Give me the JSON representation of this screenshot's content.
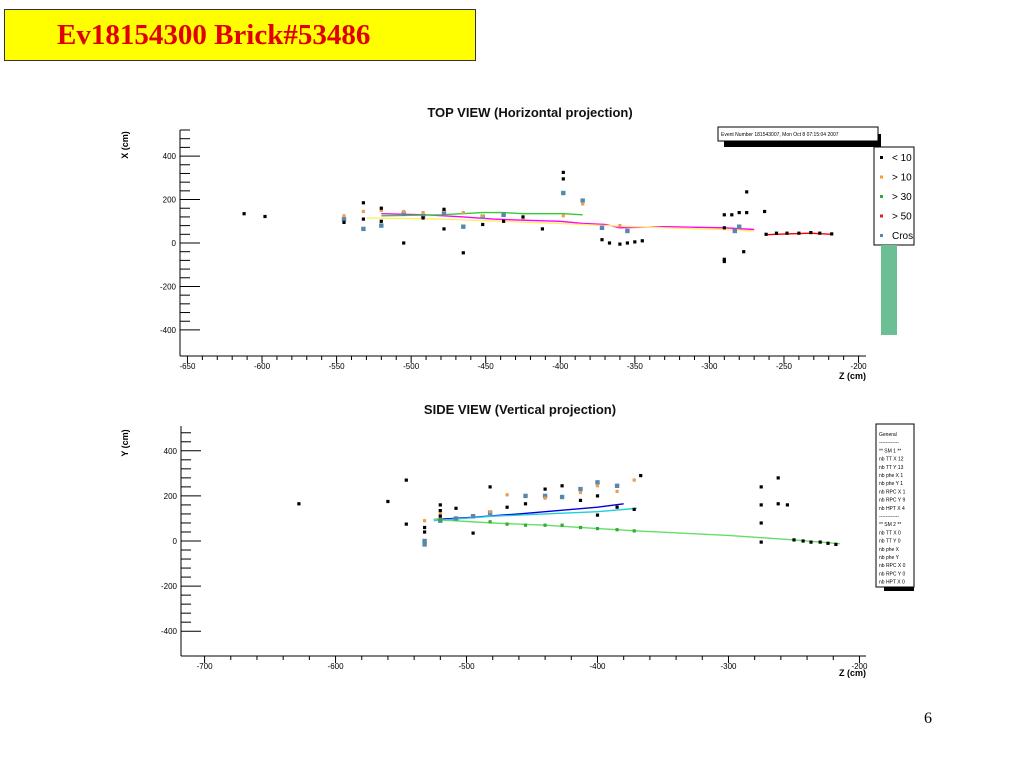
{
  "slide": {
    "title": "Ev18154300 Brick#53486",
    "page_number": "6"
  },
  "colors": {
    "title_bg": "#ffff00",
    "title_text": "#e00000",
    "track_magenta": "#ff00ff",
    "track_green": "#33cc33",
    "track_red": "#ff0000",
    "track_yellow": "#ffee66",
    "track_blue": "#0000dd",
    "track_cyan": "#22ccdd",
    "track_lightgreen": "#66dd66",
    "cross_marker": "#5588aa",
    "legend_bar": "#6cbf94"
  },
  "info_box": {
    "text": "Event Number 181543007, Mon Oct  8 07:15:04 2007"
  },
  "legend_top": {
    "entries": [
      {
        "label": "< 10",
        "color": "#000000"
      },
      {
        "label": "> 10",
        "color": "#ff9933"
      },
      {
        "label": "> 30",
        "color": "#33aa33"
      },
      {
        "label": "> 50",
        "color": "#dd2222"
      },
      {
        "label": "Cros",
        "color": "#5588aa"
      }
    ]
  },
  "stats_box": {
    "lines": [
      "General",
      "------------",
      "** SM 1 **",
      "nb TT X 12",
      "nb TT Y 13",
      "nb phe X 1",
      "nb phe Y 1",
      "nb RPC X 1",
      "nb RPC Y 9",
      "nb HPT X 4",
      "------------",
      "** SM 2 **",
      "nb TT X 0",
      "nb TT Y 0",
      "nb phe X",
      "nb phe Y",
      "nb RPC X 0",
      "nb RPC Y 0",
      "nb HPT X 0"
    ]
  },
  "chart_data": [
    {
      "type": "scatter",
      "title": "TOP VIEW (Horizontal projection)",
      "xlabel": "Z (cm)",
      "ylabel": "X (cm)",
      "xlim": [
        -655,
        -195
      ],
      "ylim": [
        -520,
        520
      ],
      "xticks": [
        -650,
        -600,
        -550,
        -500,
        -450,
        -400,
        -350,
        -300,
        -250,
        -200
      ],
      "yticks": [
        -400,
        -200,
        0,
        200,
        400
      ],
      "points_black": [
        [
          -612,
          135
        ],
        [
          -598,
          122
        ],
        [
          -545,
          95
        ],
        [
          -532,
          110
        ],
        [
          -532,
          185
        ],
        [
          -520,
          100
        ],
        [
          -520,
          160
        ],
        [
          -505,
          0
        ],
        [
          -492,
          115
        ],
        [
          -478,
          65
        ],
        [
          -478,
          155
        ],
        [
          -465,
          -45
        ],
        [
          -452,
          85
        ],
        [
          -438,
          100
        ],
        [
          -425,
          120
        ],
        [
          -412,
          65
        ],
        [
          -398,
          325
        ],
        [
          -398,
          295
        ],
        [
          -372,
          15
        ],
        [
          -367,
          0
        ],
        [
          -360,
          -5
        ],
        [
          -355,
          0
        ],
        [
          -350,
          5
        ],
        [
          -345,
          10
        ],
        [
          -290,
          130
        ],
        [
          -290,
          70
        ],
        [
          -290,
          -75
        ],
        [
          -290,
          -85
        ],
        [
          -285,
          130
        ],
        [
          -280,
          140
        ],
        [
          -277,
          -40
        ],
        [
          -275,
          140
        ],
        [
          -275,
          235
        ],
        [
          -263,
          145
        ],
        [
          -262,
          40
        ],
        [
          -255,
          45
        ],
        [
          -248,
          45
        ],
        [
          -240,
          45
        ],
        [
          -232,
          48
        ],
        [
          -226,
          45
        ],
        [
          -218,
          42
        ]
      ],
      "points_cross": [
        [
          -545,
          110
        ],
        [
          -532,
          65
        ],
        [
          -520,
          80
        ],
        [
          -505,
          135
        ],
        [
          -492,
          125
        ],
        [
          -478,
          140
        ],
        [
          -465,
          75
        ],
        [
          -452,
          120
        ],
        [
          -438,
          130
        ],
        [
          -398,
          230
        ],
        [
          -385,
          195
        ],
        [
          -372,
          70
        ],
        [
          -355,
          55
        ],
        [
          -283,
          55
        ],
        [
          -280,
          75
        ]
      ],
      "points_orange": [
        [
          -545,
          125
        ],
        [
          -532,
          145
        ],
        [
          -520,
          150
        ],
        [
          -505,
          145
        ],
        [
          -492,
          140
        ],
        [
          -478,
          150
        ],
        [
          -465,
          140
        ],
        [
          -452,
          125
        ],
        [
          -425,
          115
        ],
        [
          -398,
          125
        ],
        [
          -385,
          180
        ],
        [
          -360,
          80
        ]
      ],
      "series": [
        {
          "color": "#ff00ff",
          "points": [
            [
              -520,
              135
            ],
            [
              -490,
              130
            ],
            [
              -465,
              120
            ],
            [
              -445,
              110
            ],
            [
              -425,
              105
            ],
            [
              -400,
              100
            ],
            [
              -385,
              90
            ],
            [
              -370,
              85
            ],
            [
              -360,
              70
            ],
            [
              -330,
              75
            ],
            [
              -290,
              70
            ],
            [
              -270,
              62
            ]
          ]
        },
        {
          "color": "#33cc33",
          "points": [
            [
              -520,
              125
            ],
            [
              -480,
              130
            ],
            [
              -452,
              140
            ],
            [
              -438,
              140
            ],
            [
              -425,
              135
            ],
            [
              -412,
              135
            ],
            [
              -398,
              135
            ],
            [
              -385,
              130
            ]
          ]
        },
        {
          "color": "#ffee66",
          "points": [
            [
              -530,
              115
            ],
            [
              -480,
              110
            ],
            [
              -440,
              100
            ],
            [
              -400,
              90
            ],
            [
              -370,
              80
            ],
            [
              -330,
              70
            ],
            [
              -290,
              62
            ],
            [
              -270,
              55
            ]
          ]
        },
        {
          "color": "#ff0000",
          "points": [
            [
              -262,
              38
            ],
            [
              -248,
              42
            ],
            [
              -232,
              45
            ],
            [
              -218,
              40
            ]
          ]
        }
      ]
    },
    {
      "type": "scatter",
      "title": "SIDE VIEW (Vertical projection)",
      "xlabel": "Z (cm)",
      "ylabel": "Y (cm)",
      "xlim": [
        -718,
        -195
      ],
      "ylim": [
        -510,
        510
      ],
      "xticks": [
        -700,
        -600,
        -500,
        -400,
        -300,
        -200
      ],
      "yticks": [
        -400,
        -200,
        0,
        200,
        400
      ],
      "points_black": [
        [
          -628,
          165
        ],
        [
          -560,
          175
        ],
        [
          -546,
          270
        ],
        [
          -546,
          75
        ],
        [
          -532,
          40
        ],
        [
          -532,
          60
        ],
        [
          -520,
          110
        ],
        [
          -520,
          135
        ],
        [
          -520,
          160
        ],
        [
          -508,
          145
        ],
        [
          -495,
          35
        ],
        [
          -482,
          240
        ],
        [
          -469,
          150
        ],
        [
          -455,
          165
        ],
        [
          -440,
          230
        ],
        [
          -427,
          245
        ],
        [
          -413,
          180
        ],
        [
          -400,
          200
        ],
        [
          -400,
          115
        ],
        [
          -385,
          150
        ],
        [
          -372,
          140
        ],
        [
          -367,
          290
        ],
        [
          -275,
          240
        ],
        [
          -275,
          160
        ],
        [
          -275,
          80
        ],
        [
          -275,
          -5
        ],
        [
          -262,
          280
        ],
        [
          -262,
          165
        ],
        [
          -255,
          160
        ],
        [
          -250,
          5
        ],
        [
          -243,
          0
        ],
        [
          -237,
          -5
        ],
        [
          -230,
          -5
        ],
        [
          -224,
          -10
        ],
        [
          -218,
          -15
        ]
      ],
      "points_cross": [
        [
          -532,
          0
        ],
        [
          -532,
          -15
        ],
        [
          -520,
          90
        ],
        [
          -508,
          100
        ],
        [
          -495,
          110
        ],
        [
          -482,
          125
        ],
        [
          -455,
          200
        ],
        [
          -440,
          200
        ],
        [
          -427,
          195
        ],
        [
          -413,
          230
        ],
        [
          -400,
          260
        ],
        [
          -385,
          245
        ]
      ],
      "points_orange": [
        [
          -532,
          90
        ],
        [
          -520,
          120
        ],
        [
          -482,
          130
        ],
        [
          -469,
          205
        ],
        [
          -440,
          190
        ],
        [
          -413,
          215
        ],
        [
          -400,
          245
        ],
        [
          -385,
          220
        ],
        [
          -372,
          270
        ]
      ],
      "points_green": [
        [
          -520,
          95
        ],
        [
          -482,
          85
        ],
        [
          -469,
          75
        ],
        [
          -455,
          70
        ],
        [
          -440,
          70
        ],
        [
          -427,
          70
        ],
        [
          -413,
          60
        ],
        [
          -400,
          55
        ],
        [
          -385,
          50
        ],
        [
          -372,
          45
        ]
      ],
      "series": [
        {
          "color": "#0000dd",
          "points": [
            [
              -525,
              95
            ],
            [
              -495,
              105
            ],
            [
              -460,
              120
            ],
            [
              -420,
              140
            ],
            [
              -400,
              150
            ],
            [
              -380,
              165
            ]
          ]
        },
        {
          "color": "#22ccdd",
          "points": [
            [
              -525,
              90
            ],
            [
              -480,
              110
            ],
            [
              -440,
              120
            ],
            [
              -400,
              130
            ],
            [
              -370,
              145
            ]
          ]
        },
        {
          "color": "#66dd66",
          "points": [
            [
              -525,
              95
            ],
            [
              -480,
              80
            ],
            [
              -440,
              70
            ],
            [
              -400,
              55
            ],
            [
              -370,
              45
            ],
            [
              -300,
              25
            ],
            [
              -250,
              5
            ],
            [
              -215,
              -12
            ]
          ]
        }
      ]
    }
  ]
}
